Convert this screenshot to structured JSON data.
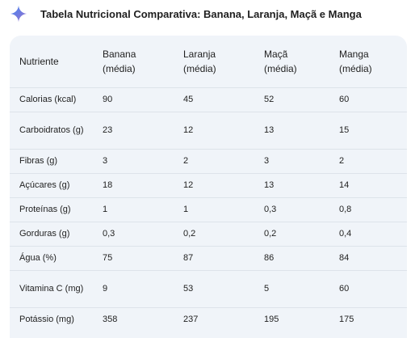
{
  "header": {
    "icon": "gemini-sparkle-icon",
    "title": "Tabela Nutricional Comparativa: Banana, Laranja, Maçã e Manga"
  },
  "table": {
    "columns": [
      "Nutriente",
      "Banana (média)",
      "Laranja (média)",
      "Maçã (média)",
      "Manga (média)"
    ],
    "rows": [
      [
        "Calorias (kcal)",
        "90",
        "45",
        "52",
        "60"
      ],
      [
        "Carboidratos (g)",
        "23",
        "12",
        "13",
        "15"
      ],
      [
        "Fibras (g)",
        "3",
        "2",
        "3",
        "2"
      ],
      [
        "Açúcares (g)",
        "18",
        "12",
        "13",
        "14"
      ],
      [
        "Proteínas (g)",
        "1",
        "1",
        "0,3",
        "0,8"
      ],
      [
        "Gorduras (g)",
        "0,3",
        "0,2",
        "0,2",
        "0,4"
      ],
      [
        "Água (%)",
        "75",
        "87",
        "86",
        "84"
      ],
      [
        "Vitamina C (mg)",
        "9",
        "53",
        "5",
        "60"
      ],
      [
        "Potássio (mg)",
        "358",
        "237",
        "195",
        "175"
      ]
    ]
  },
  "colors": {
    "accent_start": "#4285f4",
    "accent_end": "#9b72cb",
    "card_bg": "#f0f4f9",
    "divider": "#dde3ea"
  }
}
